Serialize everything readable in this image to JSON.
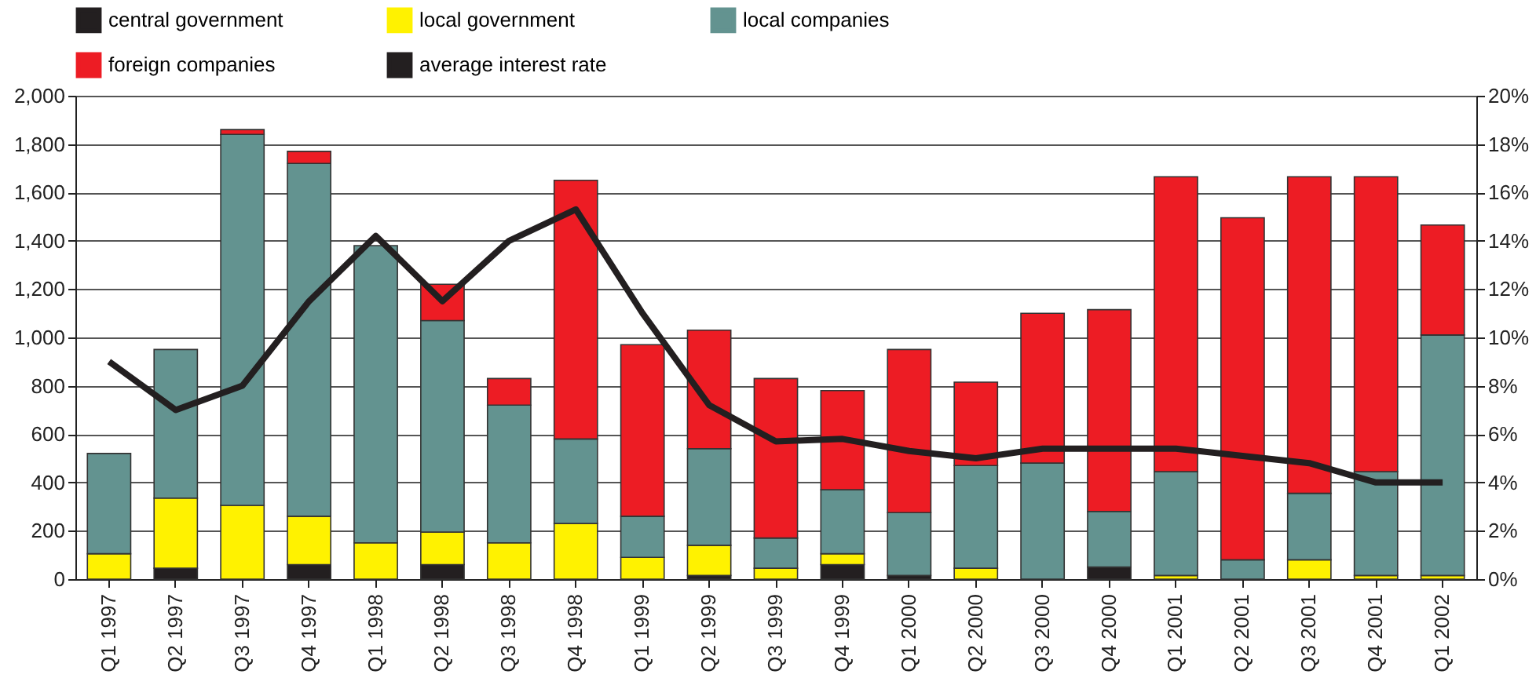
{
  "chart_data": {
    "type": "bar",
    "stacked": true,
    "categories": [
      "Q1 1997",
      "Q2 1997",
      "Q3 1997",
      "Q4 1997",
      "Q1 1998",
      "Q2 1998",
      "Q3 1998",
      "Q4 1998",
      "Q1 1999",
      "Q2 1999",
      "Q3 1999",
      "Q4 1999",
      "Q1 2000",
      "Q2 2000",
      "Q3 2000",
      "Q4 2000",
      "Q1 2001",
      "Q2 2001",
      "Q3 2001",
      "Q4 2001",
      "Q1 2002"
    ],
    "series": [
      {
        "name": "central government",
        "color": "#231f20",
        "values": [
          null,
          45,
          null,
          60,
          null,
          60,
          null,
          null,
          null,
          15,
          null,
          60,
          15,
          null,
          null,
          50,
          null,
          null,
          null,
          null,
          null
        ]
      },
      {
        "name": "local government",
        "color": "#fff200",
        "values": [
          105,
          290,
          305,
          200,
          150,
          135,
          150,
          230,
          90,
          125,
          45,
          45,
          null,
          45,
          null,
          null,
          15,
          null,
          80,
          15,
          15
        ]
      },
      {
        "name": "local companies",
        "color": "#639390",
        "values": [
          415,
          615,
          1535,
          1460,
          1230,
          875,
          570,
          350,
          170,
          400,
          125,
          265,
          260,
          425,
          480,
          230,
          430,
          80,
          275,
          430,
          995
        ]
      },
      {
        "name": "foreign companies",
        "color": "#ed1c24",
        "values": [
          null,
          null,
          20,
          50,
          null,
          150,
          110,
          1070,
          710,
          490,
          660,
          410,
          675,
          345,
          620,
          835,
          1220,
          1415,
          1310,
          1220,
          455
        ]
      },
      {
        "name": "average interest rate",
        "type": "line",
        "axis": "y2",
        "color": "#231f20",
        "values": [
          9,
          7,
          8,
          11.5,
          14.2,
          11.5,
          14,
          15.3,
          11,
          7.2,
          5.7,
          5.8,
          5.3,
          5,
          5.4,
          5.4,
          5.4,
          5.1,
          4.8,
          4,
          4
        ]
      }
    ],
    "ylim": [
      0,
      2000
    ],
    "yticks": [
      0,
      {
        "value": 200,
        "label": "200"
      },
      400,
      600,
      800,
      {
        "value": 1000,
        "label": "1,000"
      },
      {
        "value": 1200,
        "label": "1,200"
      },
      {
        "value": 1400,
        "label": "1,400"
      },
      {
        "value": 1600,
        "label": "1,600"
      },
      {
        "value": 1800,
        "label": "1,800"
      },
      {
        "value": 2000,
        "label": "2,000"
      }
    ],
    "y2lim": [
      0,
      20
    ],
    "y2ticks": [
      {
        "value": 0,
        "label": "0%"
      },
      {
        "value": 2,
        "label": "2%"
      },
      {
        "value": 4,
        "label": "4%"
      },
      {
        "value": 6,
        "label": "6%"
      },
      {
        "value": 8,
        "label": "8%"
      },
      {
        "value": 10,
        "label": "10%"
      },
      {
        "value": 12,
        "label": "12%"
      },
      {
        "value": 14,
        "label": "14%"
      },
      {
        "value": 16,
        "label": "16%"
      },
      {
        "value": 18,
        "label": "18%"
      },
      {
        "value": 20,
        "label": "20%"
      }
    ],
    "grid": "y",
    "legend": "top",
    "marker": "none",
    "line_style": "solid"
  }
}
